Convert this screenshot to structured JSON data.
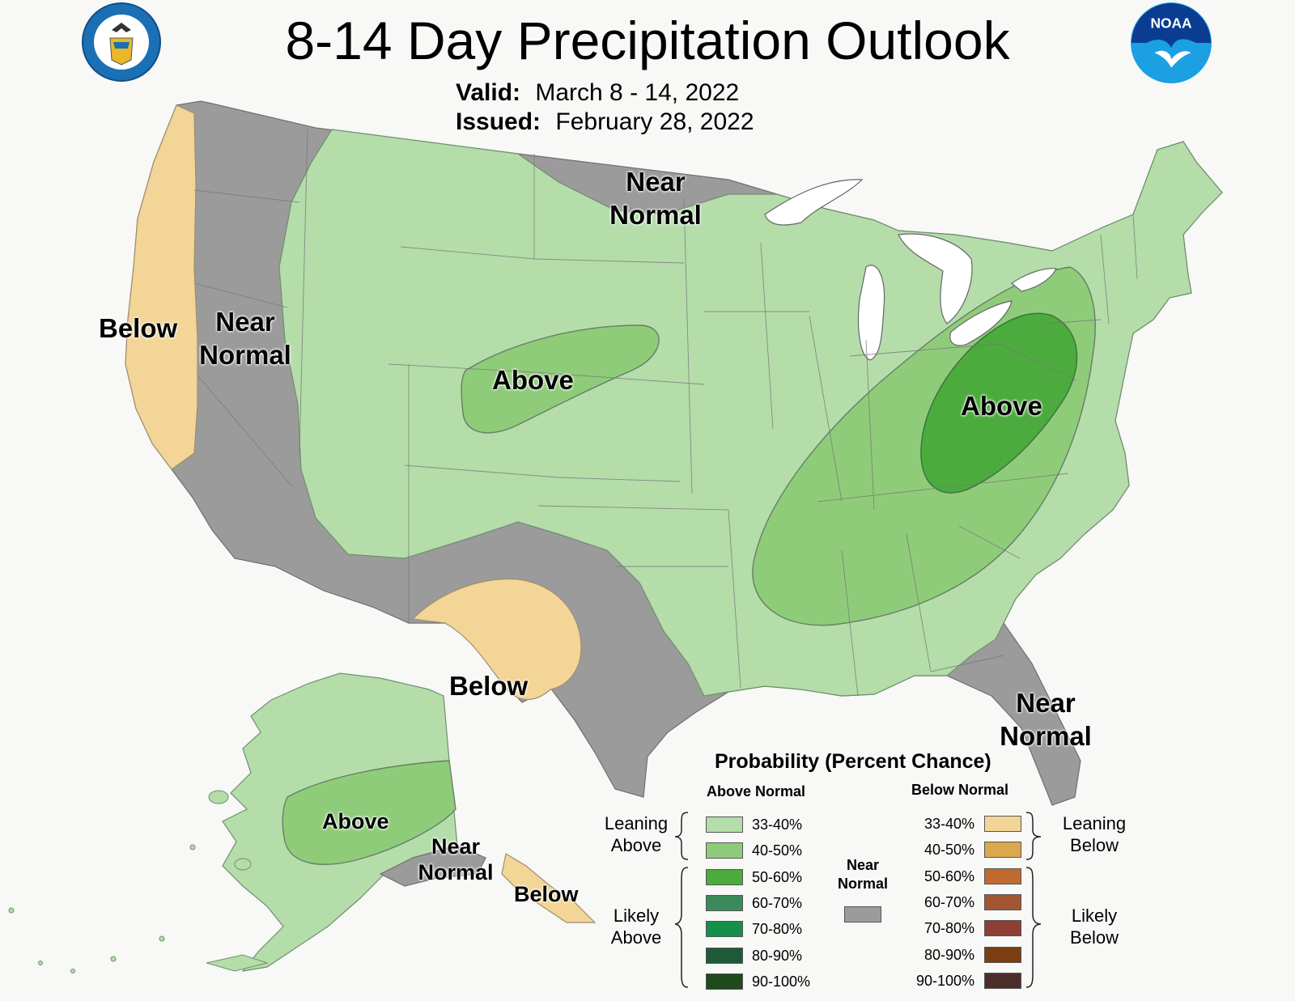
{
  "header": {
    "title": "8-14 Day Precipitation Outlook",
    "valid_label": "Valid:",
    "valid_value": "March 8 - 14, 2022",
    "issued_label": "Issued:",
    "issued_value": "February 28, 2022"
  },
  "logos": {
    "commerce_seal": "department-of-commerce-seal",
    "noaa": "NOAA"
  },
  "colors": {
    "background": "#f8f8f6",
    "near_normal": "#9b9b9b",
    "leaning_above": "#b4ddaa",
    "above_40_50": "#8fcc7a",
    "above_50_60": "#4bab3d",
    "leaning_below": "#f2d597",
    "lakes": "#ffffff"
  },
  "map_labels": {
    "west_below": "Below",
    "west_near_1": "Near",
    "west_near_2": "Normal",
    "north_near_1": "Near",
    "north_near_2": "Normal",
    "plains_above": "Above",
    "east_above": "Above",
    "texas_below": "Below",
    "florida_near_1": "Near",
    "florida_near_2": "Normal",
    "alaska_above": "Above",
    "alaska_near_1": "Near",
    "alaska_near_2": "Normal",
    "alaska_below": "Below"
  },
  "legend": {
    "title": "Probability (Percent Chance)",
    "above_header": "Above Normal",
    "below_header": "Below Normal",
    "near_1": "Near",
    "near_2": "Normal",
    "leaning_above_1": "Leaning",
    "leaning_above_2": "Above",
    "likely_above_1": "Likely",
    "likely_above_2": "Above",
    "leaning_below_1": "Leaning",
    "leaning_below_2": "Below",
    "likely_below_1": "Likely",
    "likely_below_2": "Below",
    "near_color": "#9b9b9b",
    "above": [
      {
        "range": "33-40%",
        "color": "#b4ddaa"
      },
      {
        "range": "40-50%",
        "color": "#8fcc7a"
      },
      {
        "range": "50-60%",
        "color": "#4bab3d"
      },
      {
        "range": "60-70%",
        "color": "#3a8a5a"
      },
      {
        "range": "70-80%",
        "color": "#15904a"
      },
      {
        "range": "80-90%",
        "color": "#1e5a38"
      },
      {
        "range": "90-100%",
        "color": "#1f4a1c"
      }
    ],
    "below": [
      {
        "range": "33-40%",
        "color": "#f2d597"
      },
      {
        "range": "40-50%",
        "color": "#dba84e"
      },
      {
        "range": "50-60%",
        "color": "#c06a30"
      },
      {
        "range": "60-70%",
        "color": "#a35633"
      },
      {
        "range": "70-80%",
        "color": "#8e3e33"
      },
      {
        "range": "80-90%",
        "color": "#7a3e12"
      },
      {
        "range": "90-100%",
        "color": "#4d2d2a"
      }
    ]
  }
}
